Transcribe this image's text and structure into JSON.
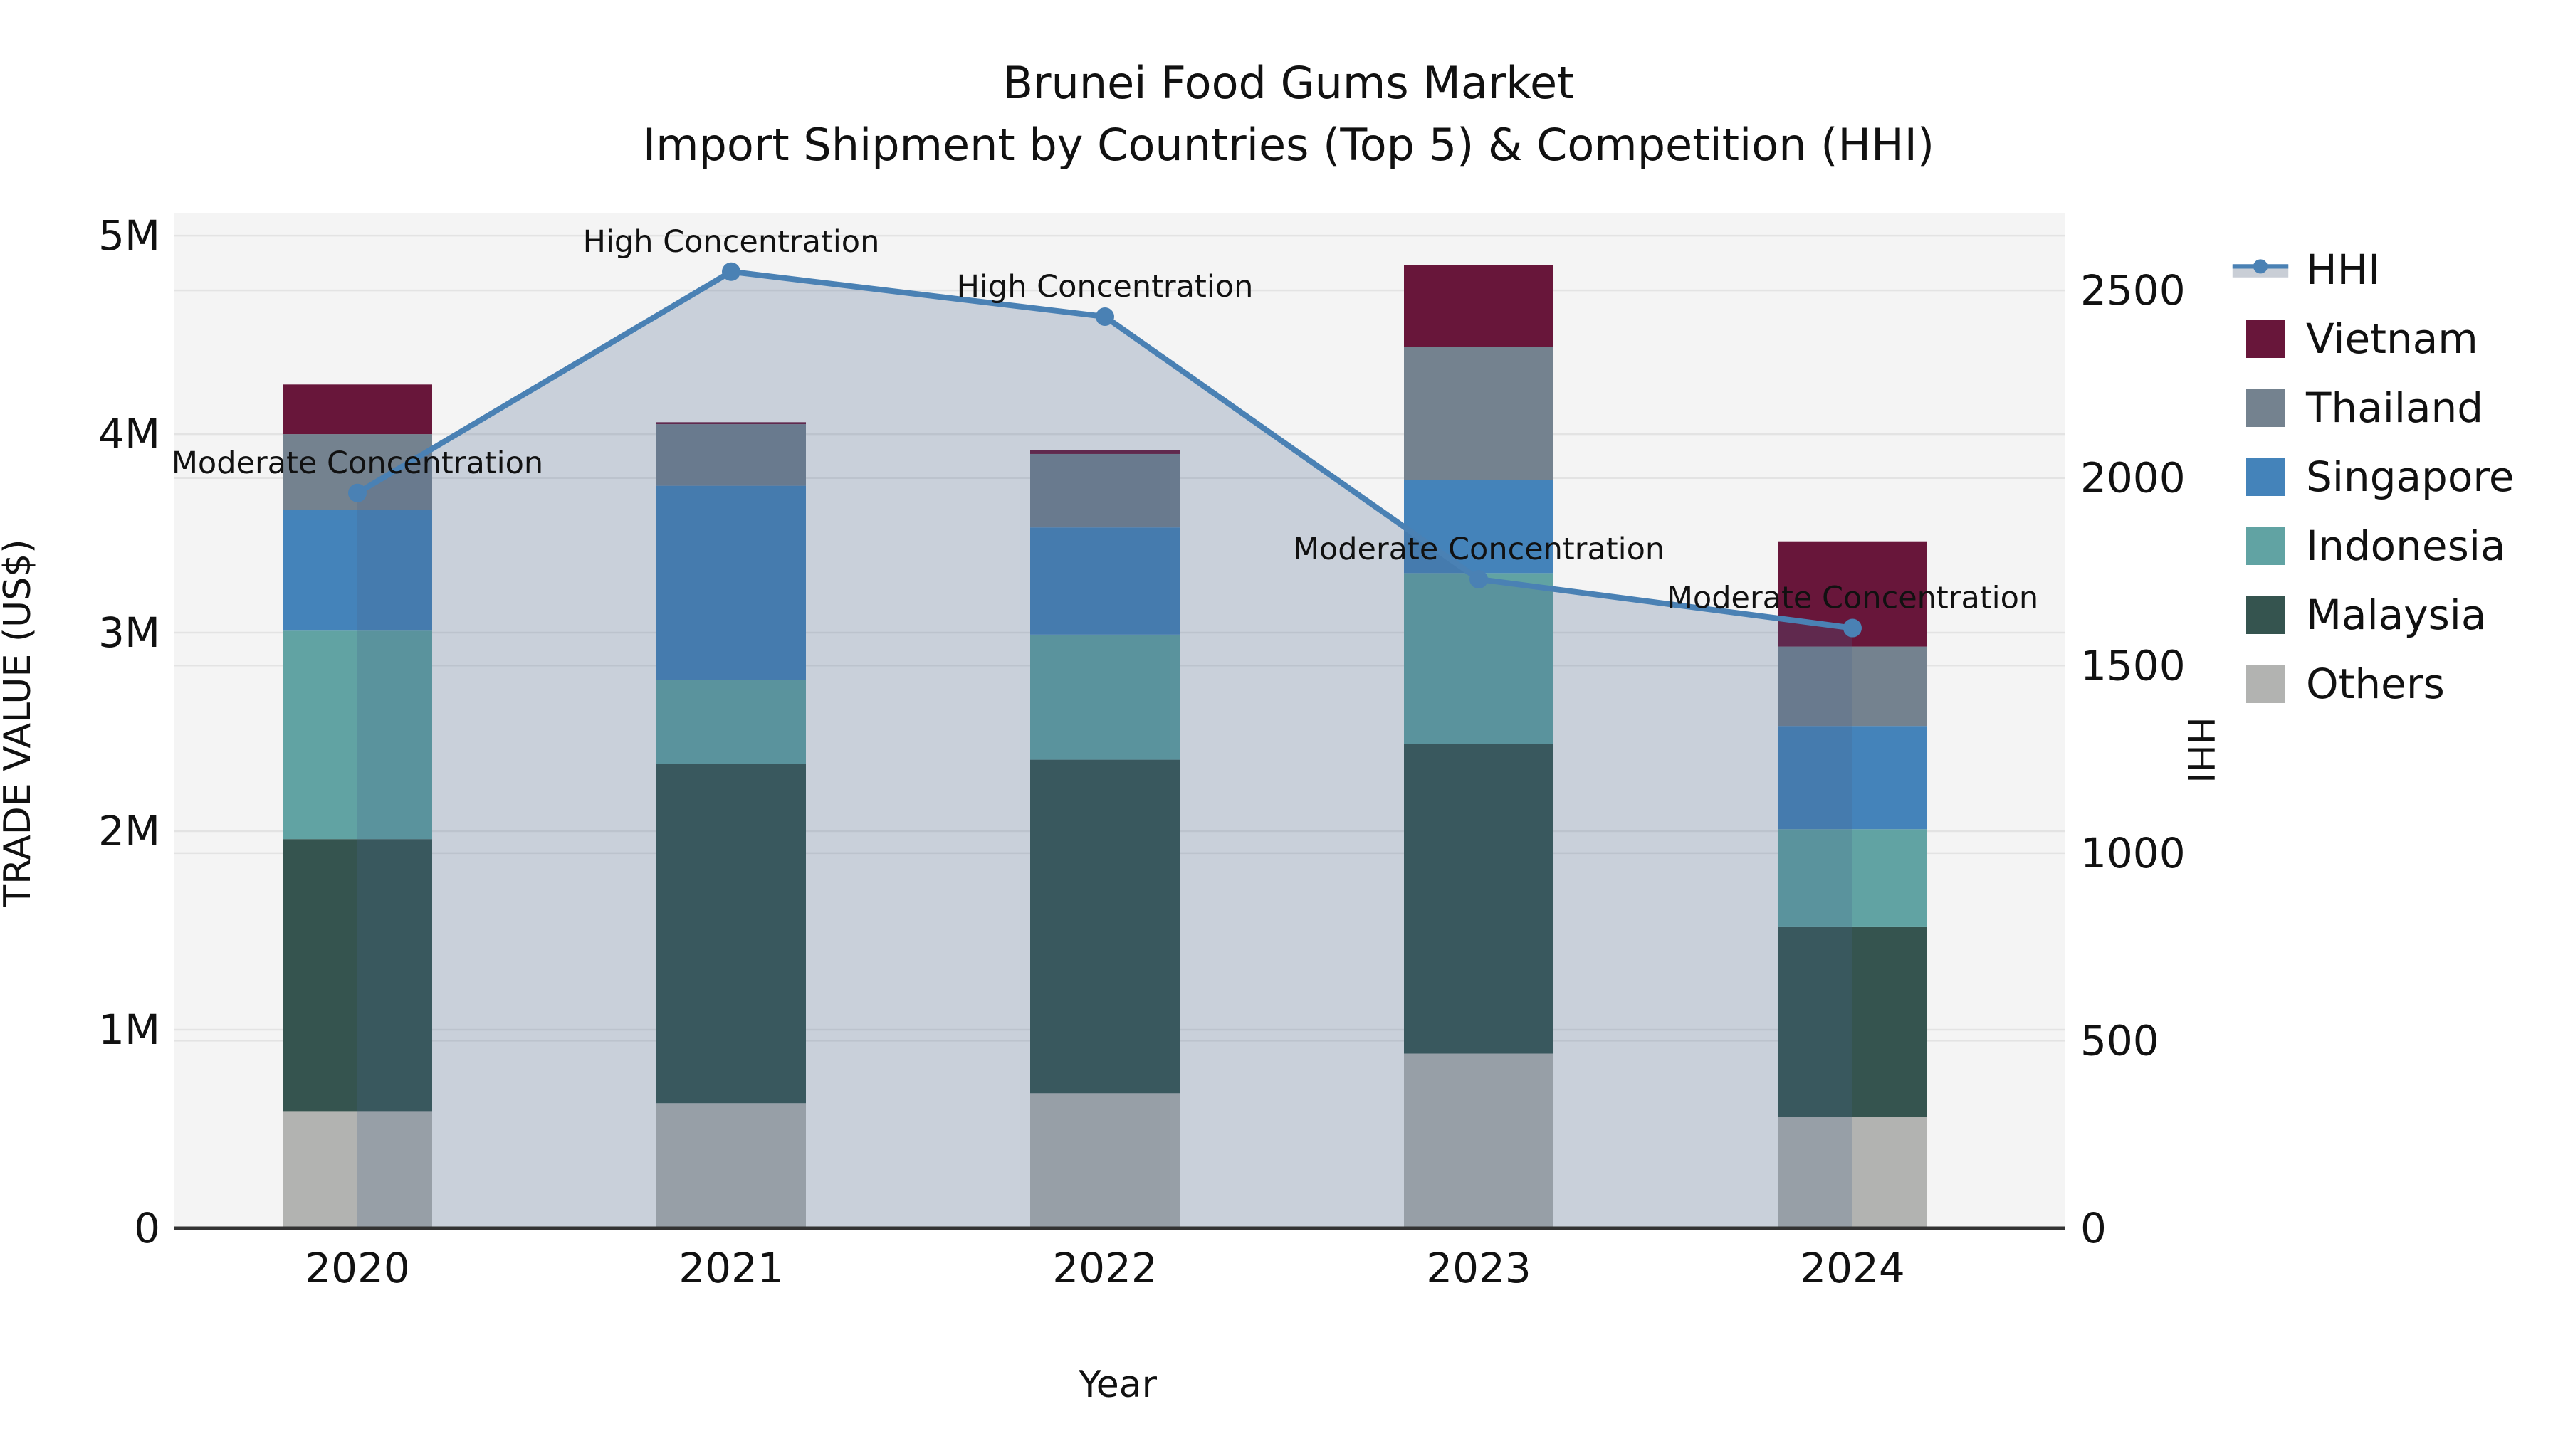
{
  "title": {
    "line1": "Brunei Food Gums Market",
    "line2": "Import Shipment by Countries (Top 5) & Competition (HHI)"
  },
  "axes": {
    "x_label": "Year",
    "y_left_label": "TRADE VALUE (US$)",
    "y_right_label": "HHI",
    "x_ticks": [
      "2020",
      "2021",
      "2022",
      "2023",
      "2024"
    ],
    "y_left_ticks": [
      "0",
      "1M",
      "2M",
      "3M",
      "4M",
      "5M"
    ],
    "y_right_ticks": [
      "0",
      "500",
      "1000",
      "1500",
      "2000",
      "2500"
    ]
  },
  "legend": {
    "items": [
      {
        "label": "HHI",
        "type": "line",
        "color": "#4a81b4",
        "band_color": "#c9ced6"
      },
      {
        "label": "Vietnam",
        "type": "patch",
        "color": "#68163a"
      },
      {
        "label": "Thailand",
        "type": "patch",
        "color": "#74828f"
      },
      {
        "label": "Singapore",
        "type": "patch",
        "color": "#4483ba"
      },
      {
        "label": "Indonesia",
        "type": "patch",
        "color": "#61a3a3"
      },
      {
        "label": "Malaysia",
        "type": "patch",
        "color": "#35544f"
      },
      {
        "label": "Others",
        "type": "patch",
        "color": "#b2b3b1"
      }
    ]
  },
  "chart_data": {
    "type": "bar",
    "subtype": "stacked-bars-with-line-overlay",
    "categories": [
      "2020",
      "2021",
      "2022",
      "2023",
      "2024"
    ],
    "value_unit": "million US$",
    "stack_order_bottom_to_top": [
      "Others",
      "Malaysia",
      "Indonesia",
      "Singapore",
      "Thailand",
      "Vietnam"
    ],
    "series": [
      {
        "name": "Others",
        "color": "#b2b3b1",
        "values": [
          0.59,
          0.63,
          0.68,
          0.88,
          0.56
        ]
      },
      {
        "name": "Malaysia",
        "color": "#35544f",
        "values": [
          1.37,
          1.71,
          1.68,
          1.56,
          0.96
        ]
      },
      {
        "name": "Indonesia",
        "color": "#61a3a3",
        "values": [
          1.05,
          0.42,
          0.63,
          0.86,
          0.49
        ]
      },
      {
        "name": "Singapore",
        "color": "#4483ba",
        "values": [
          0.61,
          0.98,
          0.54,
          0.47,
          0.52
        ]
      },
      {
        "name": "Thailand",
        "color": "#74828f",
        "values": [
          0.38,
          0.31,
          0.37,
          0.67,
          0.4
        ]
      },
      {
        "name": "Vietnam",
        "color": "#68163a",
        "values": [
          0.25,
          0.01,
          0.02,
          0.41,
          0.53
        ]
      }
    ],
    "bar_totals": [
      4.25,
      4.06,
      3.92,
      4.85,
      3.46
    ],
    "line_series": {
      "name": "HHI",
      "axis": "right",
      "values": [
        1960,
        2550,
        2430,
        1730,
        1600
      ],
      "color": "#4a81b4",
      "area_fill": "rgba(72,100,138,0.25)"
    },
    "annotations": [
      {
        "x": "2020",
        "text": "Moderate Concentration"
      },
      {
        "x": "2021",
        "text": "High Concentration"
      },
      {
        "x": "2022",
        "text": "High Concentration"
      },
      {
        "x": "2023",
        "text": "Moderate Concentration"
      },
      {
        "x": "2024",
        "text": "Moderate Concentration"
      }
    ],
    "title": "Brunei Food Gums Market — Import Shipment by Countries (Top 5) & Competition (HHI)",
    "xlabel": "Year",
    "ylabel_left": "TRADE VALUE (US$)",
    "ylabel_right": "HHI",
    "ylim_left": [
      0,
      5.115
    ],
    "ylim_right": [
      0,
      2707
    ],
    "grid": true,
    "legend_position": "right"
  }
}
